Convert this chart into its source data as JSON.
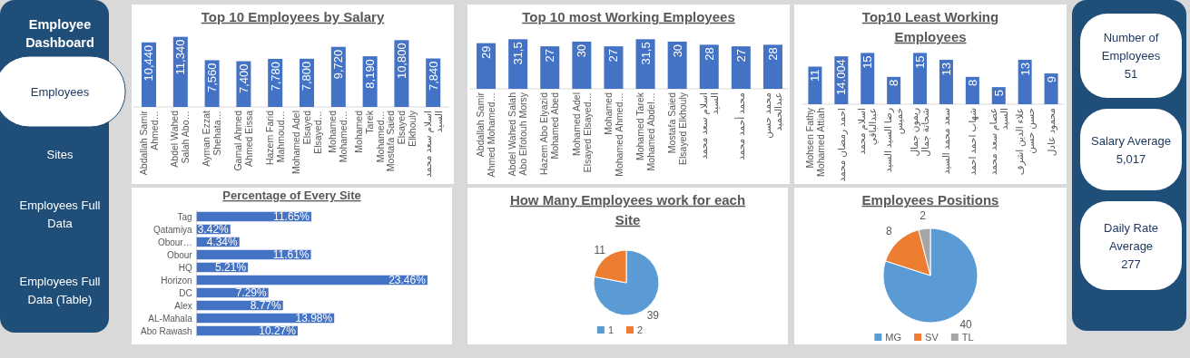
{
  "chart_data": [
    {
      "type": "other",
      "title": "Employee Dashboard",
      "annotations": [
        "Employees",
        "Sites",
        "Employees Full Data",
        "Employees Full Data (Table)"
      ]
    },
    {
      "type": "bar",
      "title": "Top 10 Employees by Salary",
      "color": "#4472c4",
      "tick_labels": "x",
      "categories": [
        "Abdallah Samir Ahmed…",
        "Abdel Wahed Salah Abo…",
        "Ayman Ezzat Shehata…",
        "Gamal Ahmed Ahmed Eissa",
        "Hazem Farid Mahmoud…",
        "Mohamed Adel Elsayed Elsayed…",
        "Mohamed Mohamed…",
        "Mohamed Tarek Mohamed…",
        "Mostafa Saied Elsayed Elkhouly",
        "اسلام سعد محمد السيد"
      ],
      "values": [
        10440,
        11340,
        7560,
        7400,
        7780,
        7800,
        9720,
        8190,
        10800,
        7840
      ],
      "value_labels": [
        "10,440",
        "11,340",
        "7,560",
        "7,400",
        "7,780",
        "7,800",
        "9,720",
        "8,190",
        "10,800",
        "7,840"
      ]
    },
    {
      "type": "bar",
      "title": "Top 10 most Working Employees",
      "color": "#4472c4",
      "tick_labels": "x",
      "categories": [
        "Abdallah Samir Ahmed Mohamed…",
        "Abdel Wahed Salah Abo Elfotouh Morsy",
        "Hazem Abo Elyazid Mohamed Abed",
        "Mohamed Adel Elsayed Elsayed…",
        "Mohamed Mohamed Ahmed…",
        "Mohamed Tarek Mohamed Abdel…",
        "Mostafa Saied Elsayed Elkhouly",
        "اسلام سعد محمد السيد",
        "محمد أحمد محمد",
        "محمد حسن عبدالحميد"
      ],
      "values": [
        29,
        31.5,
        27,
        30,
        27,
        31.5,
        30,
        28,
        27,
        28
      ],
      "value_labels": [
        "29",
        "31,5",
        "27",
        "30",
        "27",
        "31,5",
        "30",
        "28",
        "27",
        "28"
      ]
    },
    {
      "type": "bar",
      "title": "Top10 Least Working Employees",
      "color": "#4472c4",
      "tick_labels": "x",
      "categories": [
        "Mohsen Fathy Mohamed Attiah",
        "احمد رمضان محمد",
        "اسلام محمد عبدالباقي",
        "رضا السيد السيد خميس",
        "ريمون جمال شحاتة جمال",
        "سعد محمد السيد",
        "شهاب احمد احمد",
        "عصام سعد محمد السيد",
        "علاء الدين اشرف حسن حسن",
        "محمود عادل"
      ],
      "values": [
        11,
        14.004,
        15,
        8,
        15,
        13,
        8,
        5,
        13,
        9
      ],
      "value_labels": [
        "11",
        "14.004",
        "15",
        "8",
        "15",
        "13",
        "8",
        "5",
        "13",
        "9"
      ]
    },
    {
      "type": "other",
      "annotations": [
        "Number of Employees",
        "51",
        "Salary Average",
        "5,017",
        "Daily Rate Average",
        "277"
      ]
    },
    {
      "type": "bar",
      "orientation": "horizontal",
      "title": "Percentage of Every Site",
      "color": "#4472c4",
      "tick_labels": "y",
      "categories": [
        "Tag",
        "Qatamiya",
        "Obour…",
        "Obour",
        "HQ",
        "Horizon",
        "DC",
        "Alex",
        "AL-Mahala",
        "Abo Rawash"
      ],
      "values": [
        11.65,
        3.42,
        4.34,
        11.61,
        5.21,
        23.46,
        7.29,
        8.77,
        13.98,
        10.27
      ],
      "value_labels": [
        "11.65%",
        "3.42%",
        "4.34%",
        "11.61%",
        "5.21%",
        "23.46%",
        "7.29%",
        "8.77%",
        "13.98%",
        "10.27%"
      ]
    },
    {
      "type": "pie",
      "title": "How Many Employees work for each Site",
      "categories": [
        "1",
        "2"
      ],
      "values": [
        39,
        11
      ],
      "colors": [
        "#5b9bd5",
        "#ed7d31"
      ],
      "data_labels": true,
      "legend": "bottom"
    },
    {
      "type": "pie",
      "title": "Employees Positions",
      "categories": [
        "MG",
        "SV",
        "TL"
      ],
      "values": [
        40,
        8,
        2
      ],
      "colors": [
        "#5b9bd5",
        "#ed7d31",
        "#a5a5a5"
      ],
      "data_labels": true,
      "legend": "bottom"
    }
  ]
}
